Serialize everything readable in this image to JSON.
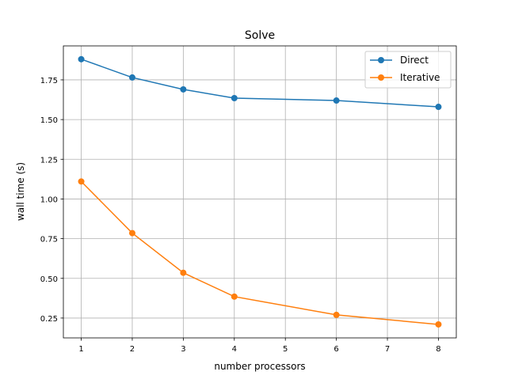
{
  "chart_data": {
    "type": "line",
    "title": "Solve",
    "xlabel": "number processors",
    "ylabel": "wall time (s)",
    "xlim": [
      0.65,
      8.35
    ],
    "ylim": [
      0.125,
      1.964
    ],
    "xticks": [
      1,
      2,
      3,
      4,
      5,
      6,
      7,
      8
    ],
    "yticks": [
      "0.25",
      "0.50",
      "0.75",
      "1.00",
      "1.25",
      "1.50",
      "1.75"
    ],
    "grid": true,
    "legend_position": "top-right",
    "series": [
      {
        "name": "Direct",
        "color": "#1f77b4",
        "x": [
          1,
          2,
          3,
          4,
          6,
          8
        ],
        "y": [
          1.88,
          1.765,
          1.69,
          1.635,
          1.62,
          1.58
        ]
      },
      {
        "name": "Iterative",
        "color": "#ff7f0e",
        "x": [
          1,
          2,
          3,
          4,
          6,
          8
        ],
        "y": [
          1.11,
          0.785,
          0.535,
          0.385,
          0.27,
          0.21
        ]
      }
    ]
  }
}
